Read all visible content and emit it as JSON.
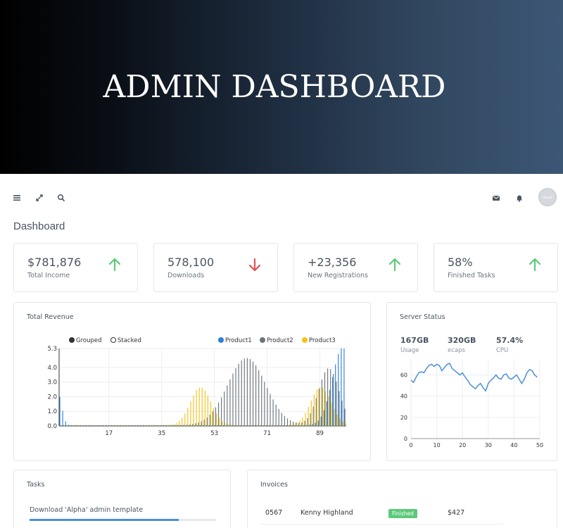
{
  "hero": {
    "title": "ADMIN DASHBOARD"
  },
  "topbar": {
    "icons": [
      "menu-icon",
      "expand-icon",
      "search-icon",
      "mail-icon",
      "bell-icon"
    ],
    "avatar_text": "shuai"
  },
  "page": {
    "title": "Dashboard"
  },
  "stats": [
    {
      "value": "$781,876",
      "label": "Total Income",
      "trend": "up",
      "color": "#5cc97b"
    },
    {
      "value": "578,100",
      "label": "Downloads",
      "trend": "down",
      "color": "#e0544f"
    },
    {
      "value": "+23,356",
      "label": "New Registrations",
      "trend": "up",
      "color": "#5cc97b"
    },
    {
      "value": "58%",
      "label": "Finished Tasks",
      "trend": "up",
      "color": "#5cc97b"
    }
  ],
  "revenue": {
    "title": "Total Revenue",
    "controls": {
      "grouped": "Grouped",
      "stacked": "Stacked"
    }
  },
  "server": {
    "title": "Server Status",
    "metrics": [
      {
        "value": "167GB",
        "label": "Usage"
      },
      {
        "value": "320GB",
        "label": "ecaps"
      },
      {
        "value": "57.4%",
        "label": "CPU"
      }
    ]
  },
  "tasks": {
    "title": "Tasks",
    "items": [
      {
        "text": "Download 'Alpha' admin template",
        "progress": 0.8
      }
    ]
  },
  "invoices": {
    "title": "Invoices",
    "rows": [
      {
        "id": "0567",
        "name": "Kenny Highland",
        "status": "Finished",
        "amount": "$427"
      }
    ]
  },
  "chart_data": [
    {
      "type": "bar",
      "legend": [
        {
          "name": "Product1",
          "color": "#2f7fd8"
        },
        {
          "name": "Product2",
          "color": "#6c757d"
        },
        {
          "name": "Product3",
          "color": "#f2c31a"
        }
      ],
      "x_ticks": [
        17,
        35,
        53,
        71,
        89
      ],
      "y_ticks": [
        "0.0",
        "1.0",
        "2.0",
        "3.0",
        "4.0",
        "5.3"
      ],
      "xlim": [
        0,
        98
      ],
      "ylim": [
        0,
        5.3
      ],
      "series": [
        {
          "name": "Product1",
          "peaks": [
            {
              "x": 0,
              "height": 2.1,
              "width": 1.2
            },
            {
              "x": 97,
              "height": 5.3,
              "width": 3.5
            }
          ]
        },
        {
          "name": "Product2",
          "peaks": [
            {
              "x": 64,
              "height": 4.6,
              "width": 6.5
            },
            {
              "x": 92,
              "height": 3.9,
              "width": 3.5
            }
          ]
        },
        {
          "name": "Product3",
          "peaks": [
            {
              "x": 48,
              "height": 2.6,
              "width": 3.5
            },
            {
              "x": 89,
              "height": 2.6,
              "width": 3.5
            }
          ]
        }
      ]
    },
    {
      "type": "line",
      "x": [
        0,
        1,
        2,
        3,
        4,
        5,
        6,
        7,
        8,
        9,
        10,
        11,
        12,
        13,
        14,
        15,
        16,
        17,
        18,
        19,
        20,
        21,
        22,
        23,
        24,
        25,
        26,
        27,
        28,
        29,
        30,
        31,
        32,
        33,
        34,
        35,
        36,
        37,
        38,
        39,
        40,
        41,
        42,
        43,
        44,
        45,
        46,
        47,
        48,
        49
      ],
      "y": [
        55,
        53,
        58,
        62,
        63,
        62,
        66,
        69,
        70,
        68,
        70,
        69,
        64,
        67,
        70,
        71,
        66,
        64,
        62,
        60,
        62,
        58,
        55,
        51,
        49,
        47,
        50,
        52,
        48,
        45,
        52,
        55,
        57,
        60,
        57,
        56,
        60,
        61,
        57,
        56,
        58,
        60,
        56,
        52,
        56,
        62,
        65,
        64,
        60,
        58
      ],
      "x_ticks": [
        0,
        10,
        20,
        30,
        40,
        50
      ],
      "y_ticks": [
        0,
        20,
        40,
        60
      ],
      "xlim": [
        0,
        50
      ],
      "ylim": [
        0,
        75
      ],
      "grid": true,
      "color": "#4a90d9"
    }
  ]
}
